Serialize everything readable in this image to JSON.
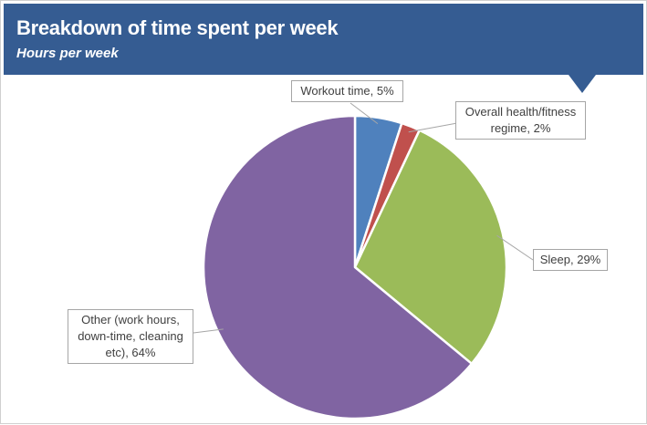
{
  "header": {
    "title": "Breakdown of time spent per week",
    "subtitle": "Hours per week"
  },
  "colors": {
    "header": "#355c92",
    "slices": [
      "#4f81bd",
      "#c0504d",
      "#9bbb59",
      "#8064a2"
    ]
  },
  "chart_data": {
    "type": "pie",
    "title": "Breakdown of time spent per week",
    "subtitle": "Hours per week",
    "categories": [
      "Workout time",
      "Overall health/fitness regime",
      "Sleep",
      "Other (work hours, down-time, cleaning etc)"
    ],
    "values": [
      5,
      2,
      29,
      64
    ],
    "unit": "%",
    "labels": [
      [
        "Workout time, 5%"
      ],
      [
        "Overall health/fitness",
        "regime, 2%"
      ],
      [
        "Sleep, 29%"
      ],
      [
        "Other (work hours,",
        "down-time, cleaning",
        "etc), 64%"
      ]
    ],
    "legend": "none"
  }
}
